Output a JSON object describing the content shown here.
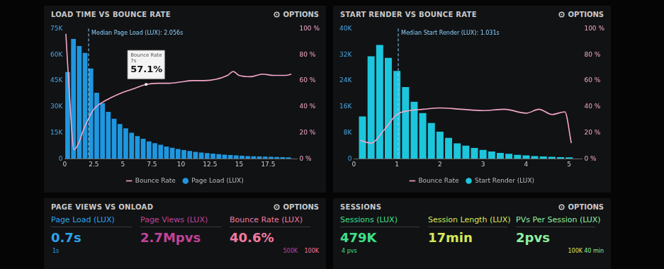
{
  "panel_menu": "OPTIONS",
  "chart_data": [
    {
      "type": "bar",
      "title": "LOAD TIME VS BOUNCE RATE",
      "bins": [
        0,
        0.5,
        1,
        1.5,
        2,
        2.5,
        3,
        3.5,
        4,
        4.5,
        5,
        5.5,
        6,
        6.5,
        7,
        7.5,
        8,
        8.5,
        9,
        9.5,
        10,
        10.5,
        11,
        11.5,
        12,
        12.5,
        13,
        13.5,
        14,
        14.5,
        15,
        15.5,
        16,
        16.5,
        17,
        17.5,
        18,
        18.5,
        19,
        19.5
      ],
      "series": [
        {
          "name": "Page Load (LUX)",
          "type": "bar",
          "color": "#1f97e0",
          "values": [
            50000,
            69000,
            65000,
            61000,
            52000,
            38000,
            32000,
            27000,
            23000,
            20000,
            17500,
            15000,
            13000,
            11500,
            10000,
            9000,
            8000,
            7000,
            6300,
            5600,
            5000,
            4500,
            4000,
            3600,
            3200,
            2900,
            2600,
            2300,
            2100,
            1900,
            1700,
            1500,
            1400,
            1300,
            1200,
            1100,
            1000,
            900,
            800
          ]
        },
        {
          "name": "Bounce Rate",
          "type": "line",
          "axis": "y2",
          "color": "#f3a7c9",
          "x": [
            0.1,
            0.4,
            0.8,
            1.2,
            1.6,
            2,
            2.5,
            3,
            4,
            5,
            6,
            7,
            8,
            9,
            10,
            11,
            12,
            13,
            14,
            14.5,
            15,
            16,
            17,
            18,
            19,
            19.5
          ],
          "values": [
            96,
            50,
            7,
            12,
            22,
            30,
            38,
            42,
            47,
            51,
            54,
            57.1,
            58,
            58,
            59,
            60,
            60,
            61,
            64,
            67,
            64,
            63,
            65,
            64,
            64,
            65
          ]
        }
      ],
      "xlim": [
        0,
        20
      ],
      "xticks": [
        0,
        2.5,
        5,
        7.5,
        10,
        12.5,
        15,
        17.5
      ],
      "ylim": [
        0,
        75000
      ],
      "yticks": [
        0,
        {
          "value": 15000,
          "label": "15K"
        },
        {
          "value": 30000,
          "label": "30K"
        },
        {
          "value": 45000,
          "label": "45K"
        },
        {
          "value": 60000,
          "label": "60K"
        },
        {
          "value": 75000,
          "label": "75K"
        }
      ],
      "y2lim": [
        0,
        100
      ],
      "y2ticks": [
        {
          "value": 0,
          "label": "0 %"
        },
        {
          "value": 20,
          "label": "20 %"
        },
        {
          "value": 40,
          "label": "40 %"
        },
        {
          "value": 60,
          "label": "60 %"
        },
        {
          "value": 80,
          "label": "80 %"
        },
        {
          "value": 100,
          "label": "100 %"
        }
      ],
      "annotations": [
        {
          "text": "Median Page Load (LUX): 2.056s",
          "x": 2.056
        }
      ],
      "callout": {
        "title": "Bounce Rate",
        "x_label": "7s",
        "label": "57.1%",
        "x": 7,
        "value": 57.1
      },
      "grid": false,
      "legend": "bottom"
    },
    {
      "type": "bar",
      "title": "START RENDER VS BOUNCE RATE",
      "bins": [
        0.1,
        0.3,
        0.5,
        0.7,
        0.9,
        1.1,
        1.3,
        1.5,
        1.7,
        1.9,
        2.1,
        2.3,
        2.5,
        2.7,
        2.9,
        3.1,
        3.3,
        3.5,
        3.7,
        3.9,
        4.1,
        4.3,
        4.5,
        4.7,
        4.9,
        5.1
      ],
      "series": [
        {
          "name": "Start Render (LUX)",
          "type": "bar",
          "color": "#1cc6dc",
          "values": [
            13000,
            31500,
            35000,
            31000,
            27000,
            22000,
            17500,
            14000,
            11000,
            8300,
            6400,
            4700,
            4000,
            3300,
            2700,
            2200,
            1800,
            1500,
            1200,
            1000,
            800,
            700,
            600,
            500,
            400
          ]
        },
        {
          "name": "Bounce Rate",
          "type": "line",
          "axis": "y2",
          "color": "#f3a7c9",
          "x": [
            0.15,
            0.4,
            0.7,
            1,
            1.3,
            1.6,
            2,
            2.5,
            3,
            3.5,
            4,
            4.3,
            4.6,
            4.9,
            5.05
          ],
          "values": [
            14,
            12,
            22,
            34,
            37,
            38,
            39,
            38,
            37,
            38,
            35,
            38,
            34,
            36,
            12
          ]
        }
      ],
      "xlim": [
        0,
        5.3
      ],
      "xticks": [
        0,
        1,
        2,
        3,
        4,
        5
      ],
      "ylim": [
        0,
        40000
      ],
      "yticks": [
        0,
        {
          "value": 8000,
          "label": "8K"
        },
        {
          "value": 16000,
          "label": "16K"
        },
        {
          "value": 24000,
          "label": "24K"
        },
        {
          "value": 32000,
          "label": "32K"
        },
        {
          "value": 40000,
          "label": "40K"
        }
      ],
      "y2lim": [
        0,
        100
      ],
      "y2ticks": [
        {
          "value": 0,
          "label": "0 %"
        },
        {
          "value": 20,
          "label": "20 %"
        },
        {
          "value": 40,
          "label": "40 %"
        },
        {
          "value": 60,
          "label": "60 %"
        },
        {
          "value": 80,
          "label": "80 %"
        },
        {
          "value": 100,
          "label": "100 %"
        }
      ],
      "annotations": [
        {
          "text": "Median Start Render (LUX): 1.031s",
          "x": 1.031
        }
      ],
      "grid": false,
      "legend": "bottom"
    }
  ],
  "panels": [
    {
      "title": "PAGE VIEWS VS ONLOAD",
      "metrics": [
        {
          "label": "Page Load (LUX)",
          "value": "0.7s",
          "color": "#2ea3ec"
        },
        {
          "label": "Page Views (LUX)",
          "value": "2.7Mpvs",
          "color": "#c0449a"
        },
        {
          "label": "Bounce Rate (LUX)",
          "value": "40.6%",
          "color": "#f07aa0"
        }
      ],
      "notes": [
        "1s",
        "500K",
        "100K"
      ]
    },
    {
      "title": "SESSIONS",
      "metrics": [
        {
          "label": "Sessions (LUX)",
          "value": "479K",
          "color": "#3fe08a"
        },
        {
          "label": "Session Length (LUX)",
          "value": "17min",
          "color": "#d6e85a"
        },
        {
          "label": "PVs Per Session (LUX)",
          "value": "2pvs",
          "color": "#8ef0a0"
        }
      ],
      "notes": [
        "4 pvs",
        "100K",
        "40 min"
      ]
    }
  ]
}
